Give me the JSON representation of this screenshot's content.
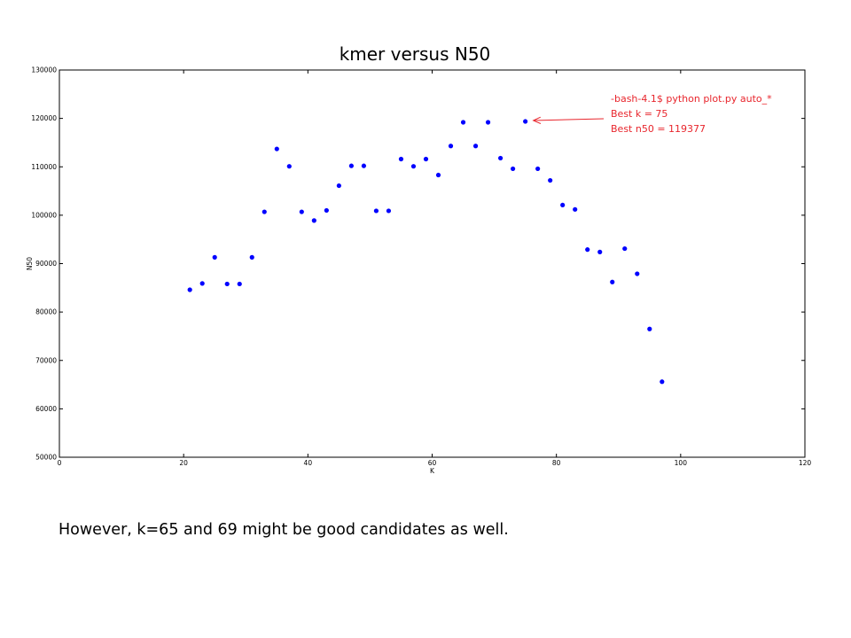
{
  "chart_data": {
    "type": "scatter",
    "title": "kmer versus N50",
    "xlabel": "K",
    "ylabel": "N50",
    "xlim": [
      0,
      120
    ],
    "ylim": [
      50000,
      130000
    ],
    "xticks": [
      0,
      20,
      40,
      60,
      80,
      100,
      120
    ],
    "yticks": [
      50000,
      60000,
      70000,
      80000,
      90000,
      100000,
      110000,
      120000,
      130000
    ],
    "grid": false,
    "point_color": "#0000ff",
    "x": [
      21,
      23,
      25,
      27,
      29,
      31,
      33,
      35,
      37,
      39,
      41,
      43,
      45,
      47,
      49,
      51,
      53,
      55,
      57,
      59,
      61,
      63,
      65,
      67,
      69,
      71,
      73,
      75,
      77,
      79,
      81,
      83,
      85,
      87,
      89,
      91,
      93,
      95,
      97
    ],
    "y": [
      84600,
      85900,
      91300,
      85800,
      85800,
      91300,
      100700,
      113700,
      110100,
      100700,
      98900,
      101000,
      106100,
      110200,
      110200,
      100900,
      100900,
      111600,
      110100,
      111600,
      108300,
      114300,
      119200,
      114300,
      119200,
      111800,
      109600,
      119377,
      109600,
      107200,
      102100,
      101200,
      92900,
      92400,
      86200,
      93100,
      87900,
      76500,
      65600
    ],
    "annotation": {
      "lines": [
        "-bash-4.1$ python plot.py auto_*",
        "Best k = 75",
        "Best n50 = 119377"
      ],
      "target_x": 75,
      "target_y": 119377,
      "color": "#e8252c"
    }
  },
  "caption": "However, k=65 and 69 might be good candidates as well."
}
